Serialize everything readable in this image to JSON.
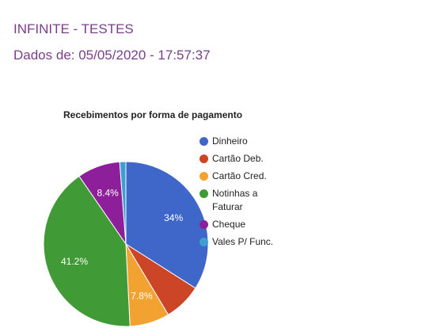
{
  "header": {
    "title": "INFINITE - TESTES",
    "subtitle": "Dados de: 05/05/2020 - 17:57:37"
  },
  "chart_data": {
    "type": "pie",
    "title": "Recebimentos por forma de pagamento",
    "legend_position": "right",
    "slices": [
      {
        "label": "Dinheiro",
        "value": 34.0,
        "display": "34%",
        "color": "#3f66c9"
      },
      {
        "label": "Cartão Deb.",
        "value": 7.4,
        "display": "",
        "color": "#cc4526"
      },
      {
        "label": "Cartão Cred.",
        "value": 7.8,
        "display": "7.8%",
        "color": "#f2a231"
      },
      {
        "label": "Notinhas a Faturar",
        "value": 41.2,
        "display": "41.2%",
        "color": "#409a35"
      },
      {
        "label": "Cheque",
        "value": 8.4,
        "display": "8.4%",
        "color": "#8e1f9b"
      },
      {
        "label": "Vales P/ Func.",
        "value": 1.2,
        "display": "",
        "color": "#3d9fd0"
      }
    ]
  }
}
